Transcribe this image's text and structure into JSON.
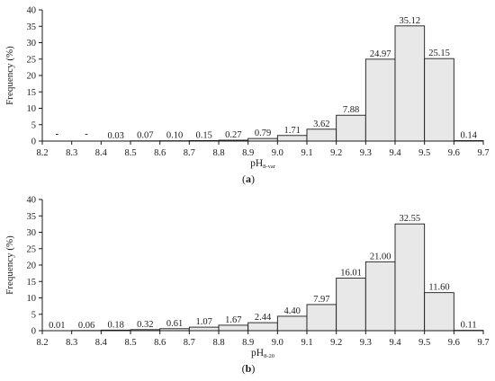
{
  "chart_data": [
    {
      "type": "bar",
      "caption_letter": "a",
      "xlabel_main": "pH",
      "xlabel_sub": "8-var",
      "ylabel": "Frequency (%)",
      "ylim": [
        0,
        40
      ],
      "yticks": [
        0,
        5,
        10,
        15,
        20,
        25,
        30,
        35,
        40
      ],
      "xlim": [
        8.2,
        9.7
      ],
      "xticks": [
        "8.2",
        "8.3",
        "8.4",
        "8.5",
        "8.6",
        "8.7",
        "8.8",
        "8.9",
        "9.0",
        "9.1",
        "9.2",
        "9.3",
        "9.4",
        "9.5",
        "9.6",
        "9.7"
      ],
      "bin_starts": [
        8.2,
        8.3,
        8.4,
        8.5,
        8.6,
        8.7,
        8.8,
        8.9,
        9.0,
        9.1,
        9.2,
        9.3,
        9.4,
        9.5,
        9.6
      ],
      "bin_width": 0.1,
      "values": [
        0,
        0,
        0.03,
        0.07,
        0.1,
        0.15,
        0.27,
        0.79,
        1.71,
        3.62,
        7.88,
        24.97,
        35.12,
        25.15,
        0.14
      ],
      "value_labels": [
        "-",
        "-",
        "0.03",
        "0.07",
        "0.10",
        "0.15",
        "0.27",
        "0.79",
        "1.71",
        "3.62",
        "7.88",
        "24.97",
        "35.12",
        "25.15",
        "0.14"
      ],
      "bar_color": "#e8e8e8"
    },
    {
      "type": "bar",
      "caption_letter": "b",
      "xlabel_main": "pH",
      "xlabel_sub": "8-20",
      "ylabel": "Frequency (%)",
      "ylim": [
        0,
        40
      ],
      "yticks": [
        0,
        5,
        10,
        15,
        20,
        25,
        30,
        35,
        40
      ],
      "xlim": [
        8.2,
        9.7
      ],
      "xticks": [
        "8.2",
        "8.3",
        "8.4",
        "8.5",
        "8.6",
        "8.7",
        "8.8",
        "8.9",
        "9.0",
        "9.1",
        "9.2",
        "9.3",
        "9.4",
        "9.5",
        "9.6",
        "9.7"
      ],
      "bin_starts": [
        8.2,
        8.3,
        8.4,
        8.5,
        8.6,
        8.7,
        8.8,
        8.9,
        9.0,
        9.1,
        9.2,
        9.3,
        9.4,
        9.5,
        9.6
      ],
      "bin_width": 0.1,
      "values": [
        0.01,
        0.06,
        0.18,
        0.32,
        0.61,
        1.07,
        1.67,
        2.44,
        4.4,
        7.97,
        16.01,
        21.0,
        32.55,
        11.6,
        0.11
      ],
      "value_labels": [
        "0.01",
        "0.06",
        "0.18",
        "0.32",
        "0.61",
        "1.07",
        "1.67",
        "2.44",
        "4.40",
        "7.97",
        "16.01",
        "21.00",
        "32.55",
        "11.60",
        "0.11"
      ],
      "bar_color": "#e8e8e8"
    }
  ]
}
